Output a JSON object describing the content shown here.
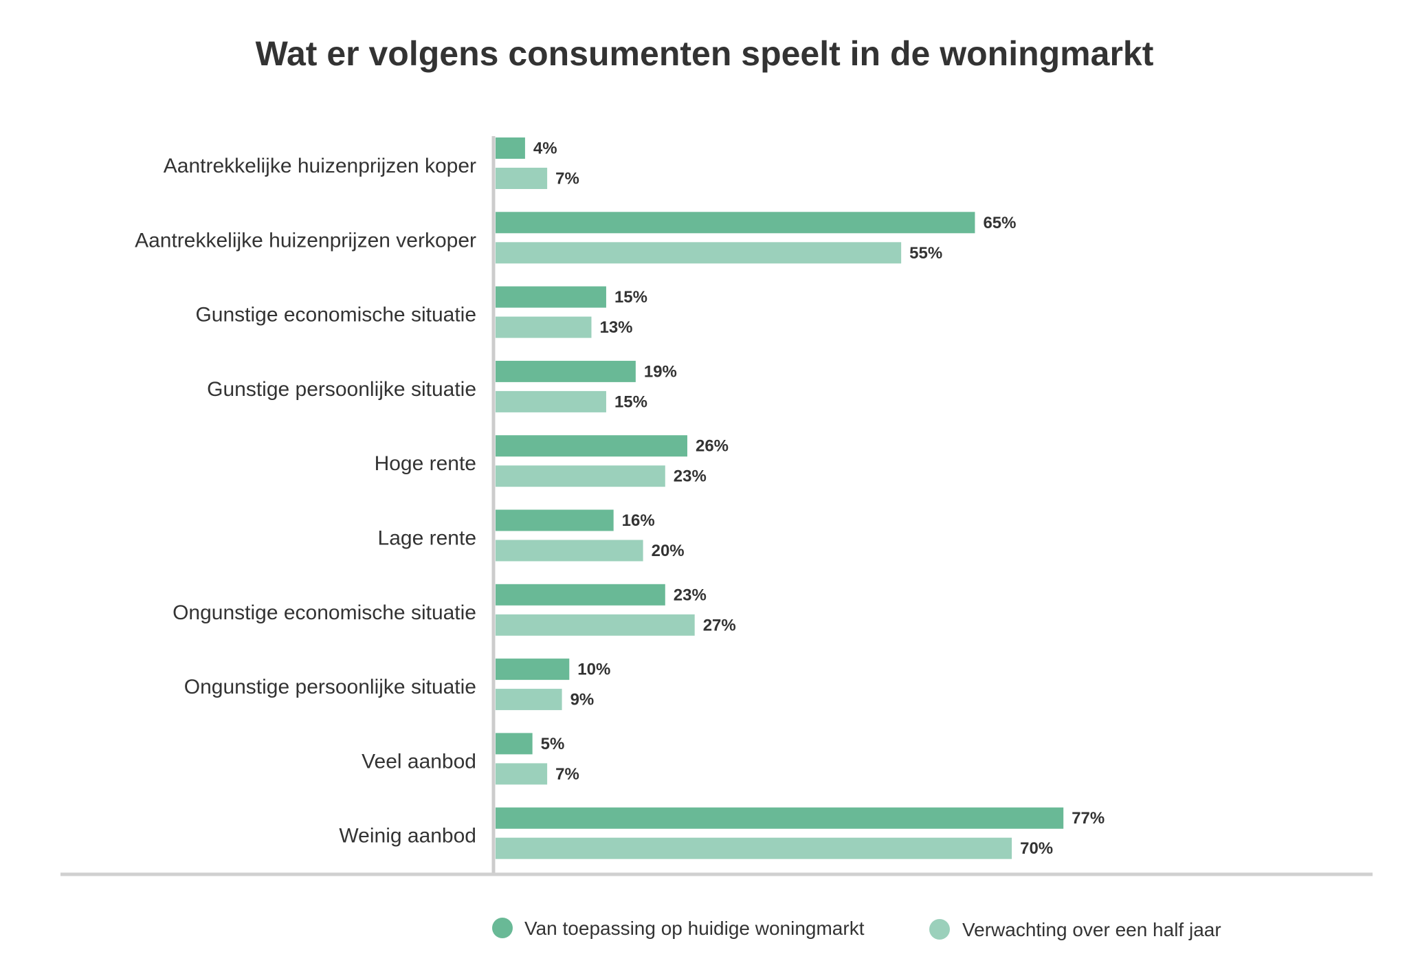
{
  "chart_data": {
    "type": "bar",
    "orientation": "horizontal",
    "title": "Wat er volgens consumenten speelt in de woningmarkt",
    "categories": [
      "Aantrekkelijke huizenprijzen koper",
      "Aantrekkelijke huizenprijzen verkoper",
      "Gunstige economische situatie",
      "Gunstige persoonlijke situatie",
      "Hoge rente",
      "Lage rente",
      "Ongunstige economische situatie",
      "Ongunstige persoonlijke situatie",
      "Veel aanbod",
      "Weinig aanbod"
    ],
    "series": [
      {
        "name": "Van toepassing op huidige woningmarkt",
        "color": "#69b996",
        "values": [
          4,
          65,
          15,
          19,
          26,
          16,
          23,
          10,
          5,
          77
        ],
        "labels": [
          "4%",
          "65%",
          "15%",
          "19%",
          "26%",
          "16%",
          "23%",
          "10%",
          "5%",
          "77%"
        ]
      },
      {
        "name": "Verwachting over een half jaar",
        "color": "#9bd0bb",
        "values": [
          7,
          55,
          13,
          15,
          23,
          20,
          27,
          9,
          7,
          70
        ],
        "labels": [
          "7%",
          "55%",
          "13%",
          "15%",
          "23%",
          "20%",
          "27%",
          "9%",
          "7%",
          "70%"
        ]
      }
    ],
    "unit": "%",
    "xlim": [
      0,
      100
    ],
    "grid": false,
    "legend_position": "bottom",
    "axis_color": "#cccccc"
  }
}
